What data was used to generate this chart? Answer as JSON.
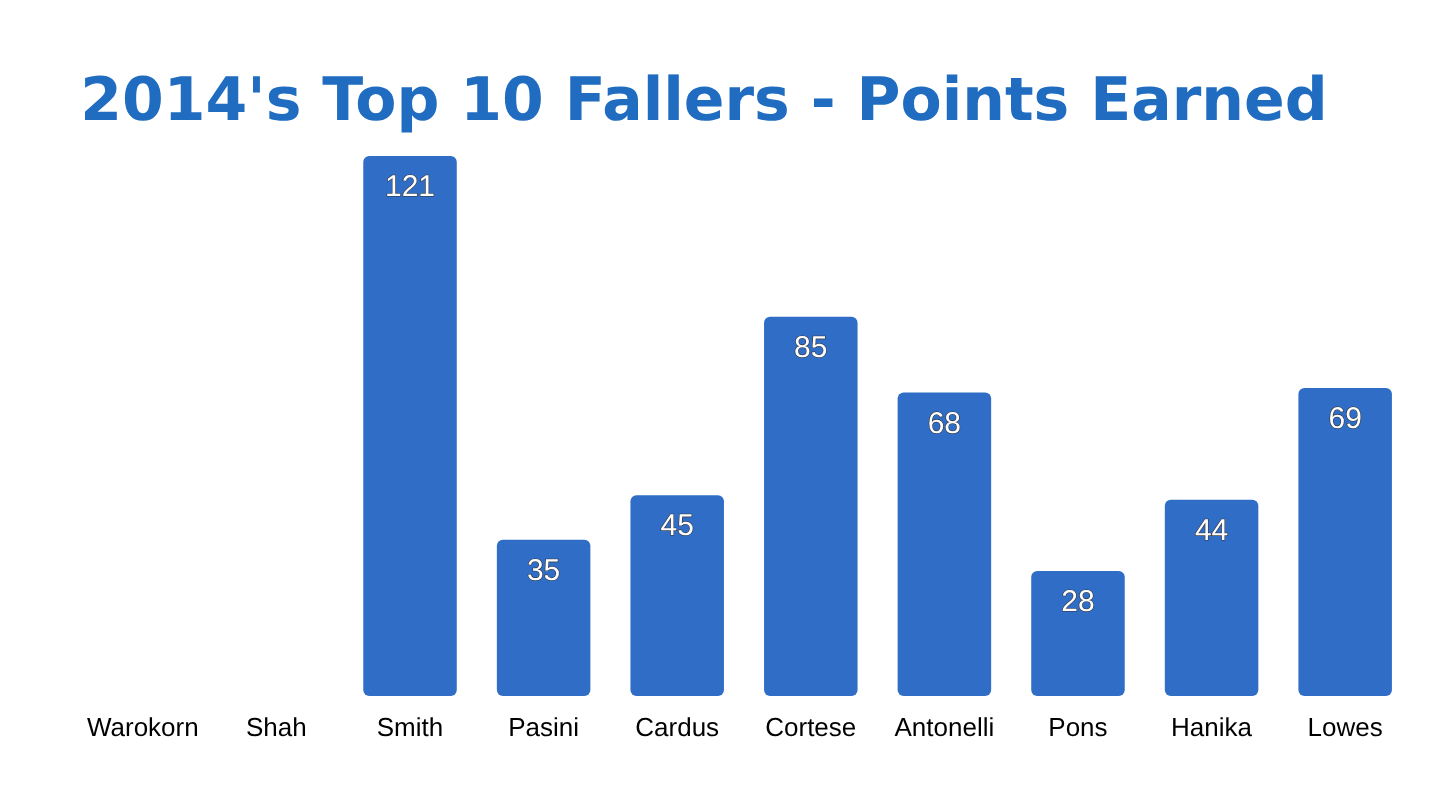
{
  "chart_data": {
    "type": "bar",
    "title": "2014's Top 10 Fallers - Points Earned",
    "categories": [
      "Warokorn",
      "Shah",
      "Smith",
      "Pasini",
      "Cardus",
      "Cortese",
      "Antonelli",
      "Pons",
      "Hanika",
      "Lowes"
    ],
    "values": [
      0,
      0,
      121,
      35,
      45,
      85,
      68,
      28,
      44,
      69
    ],
    "value_labels": [
      null,
      null,
      "121",
      "35",
      "45",
      "85",
      "68",
      "28",
      "44",
      "69"
    ],
    "color": "#2f6dc6"
  }
}
